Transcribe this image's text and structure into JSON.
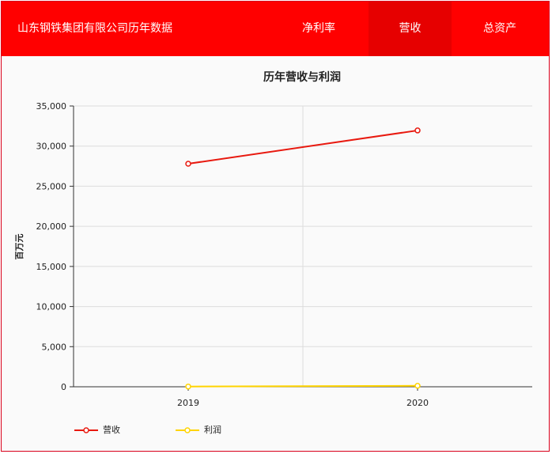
{
  "header": {
    "title": "山东钢铁集团有限公司历年数据",
    "tabs": [
      {
        "label": "净利率",
        "active": false
      },
      {
        "label": "营收",
        "active": true
      },
      {
        "label": "总资产",
        "active": false
      }
    ]
  },
  "colors": {
    "brand": "#ff0000",
    "active_tab": "#e60000",
    "revenue_line": "#e8190f",
    "profit_line": "#ffd400"
  },
  "chart_data": {
    "type": "line",
    "title": "历年营收与利润",
    "ylabel": "百万元",
    "xlabel": "",
    "categories": [
      "2019",
      "2020"
    ],
    "ylim": [
      0,
      35000
    ],
    "yticks": [
      "0",
      "5,000",
      "10,000",
      "15,000",
      "20,000",
      "25,000",
      "30,000",
      "35,000"
    ],
    "grid": true,
    "legend_position": "bottom-left",
    "series": [
      {
        "name": "营收",
        "values": [
          27800,
          31950
        ]
      },
      {
        "name": "利润",
        "values": [
          30,
          120
        ]
      }
    ]
  }
}
